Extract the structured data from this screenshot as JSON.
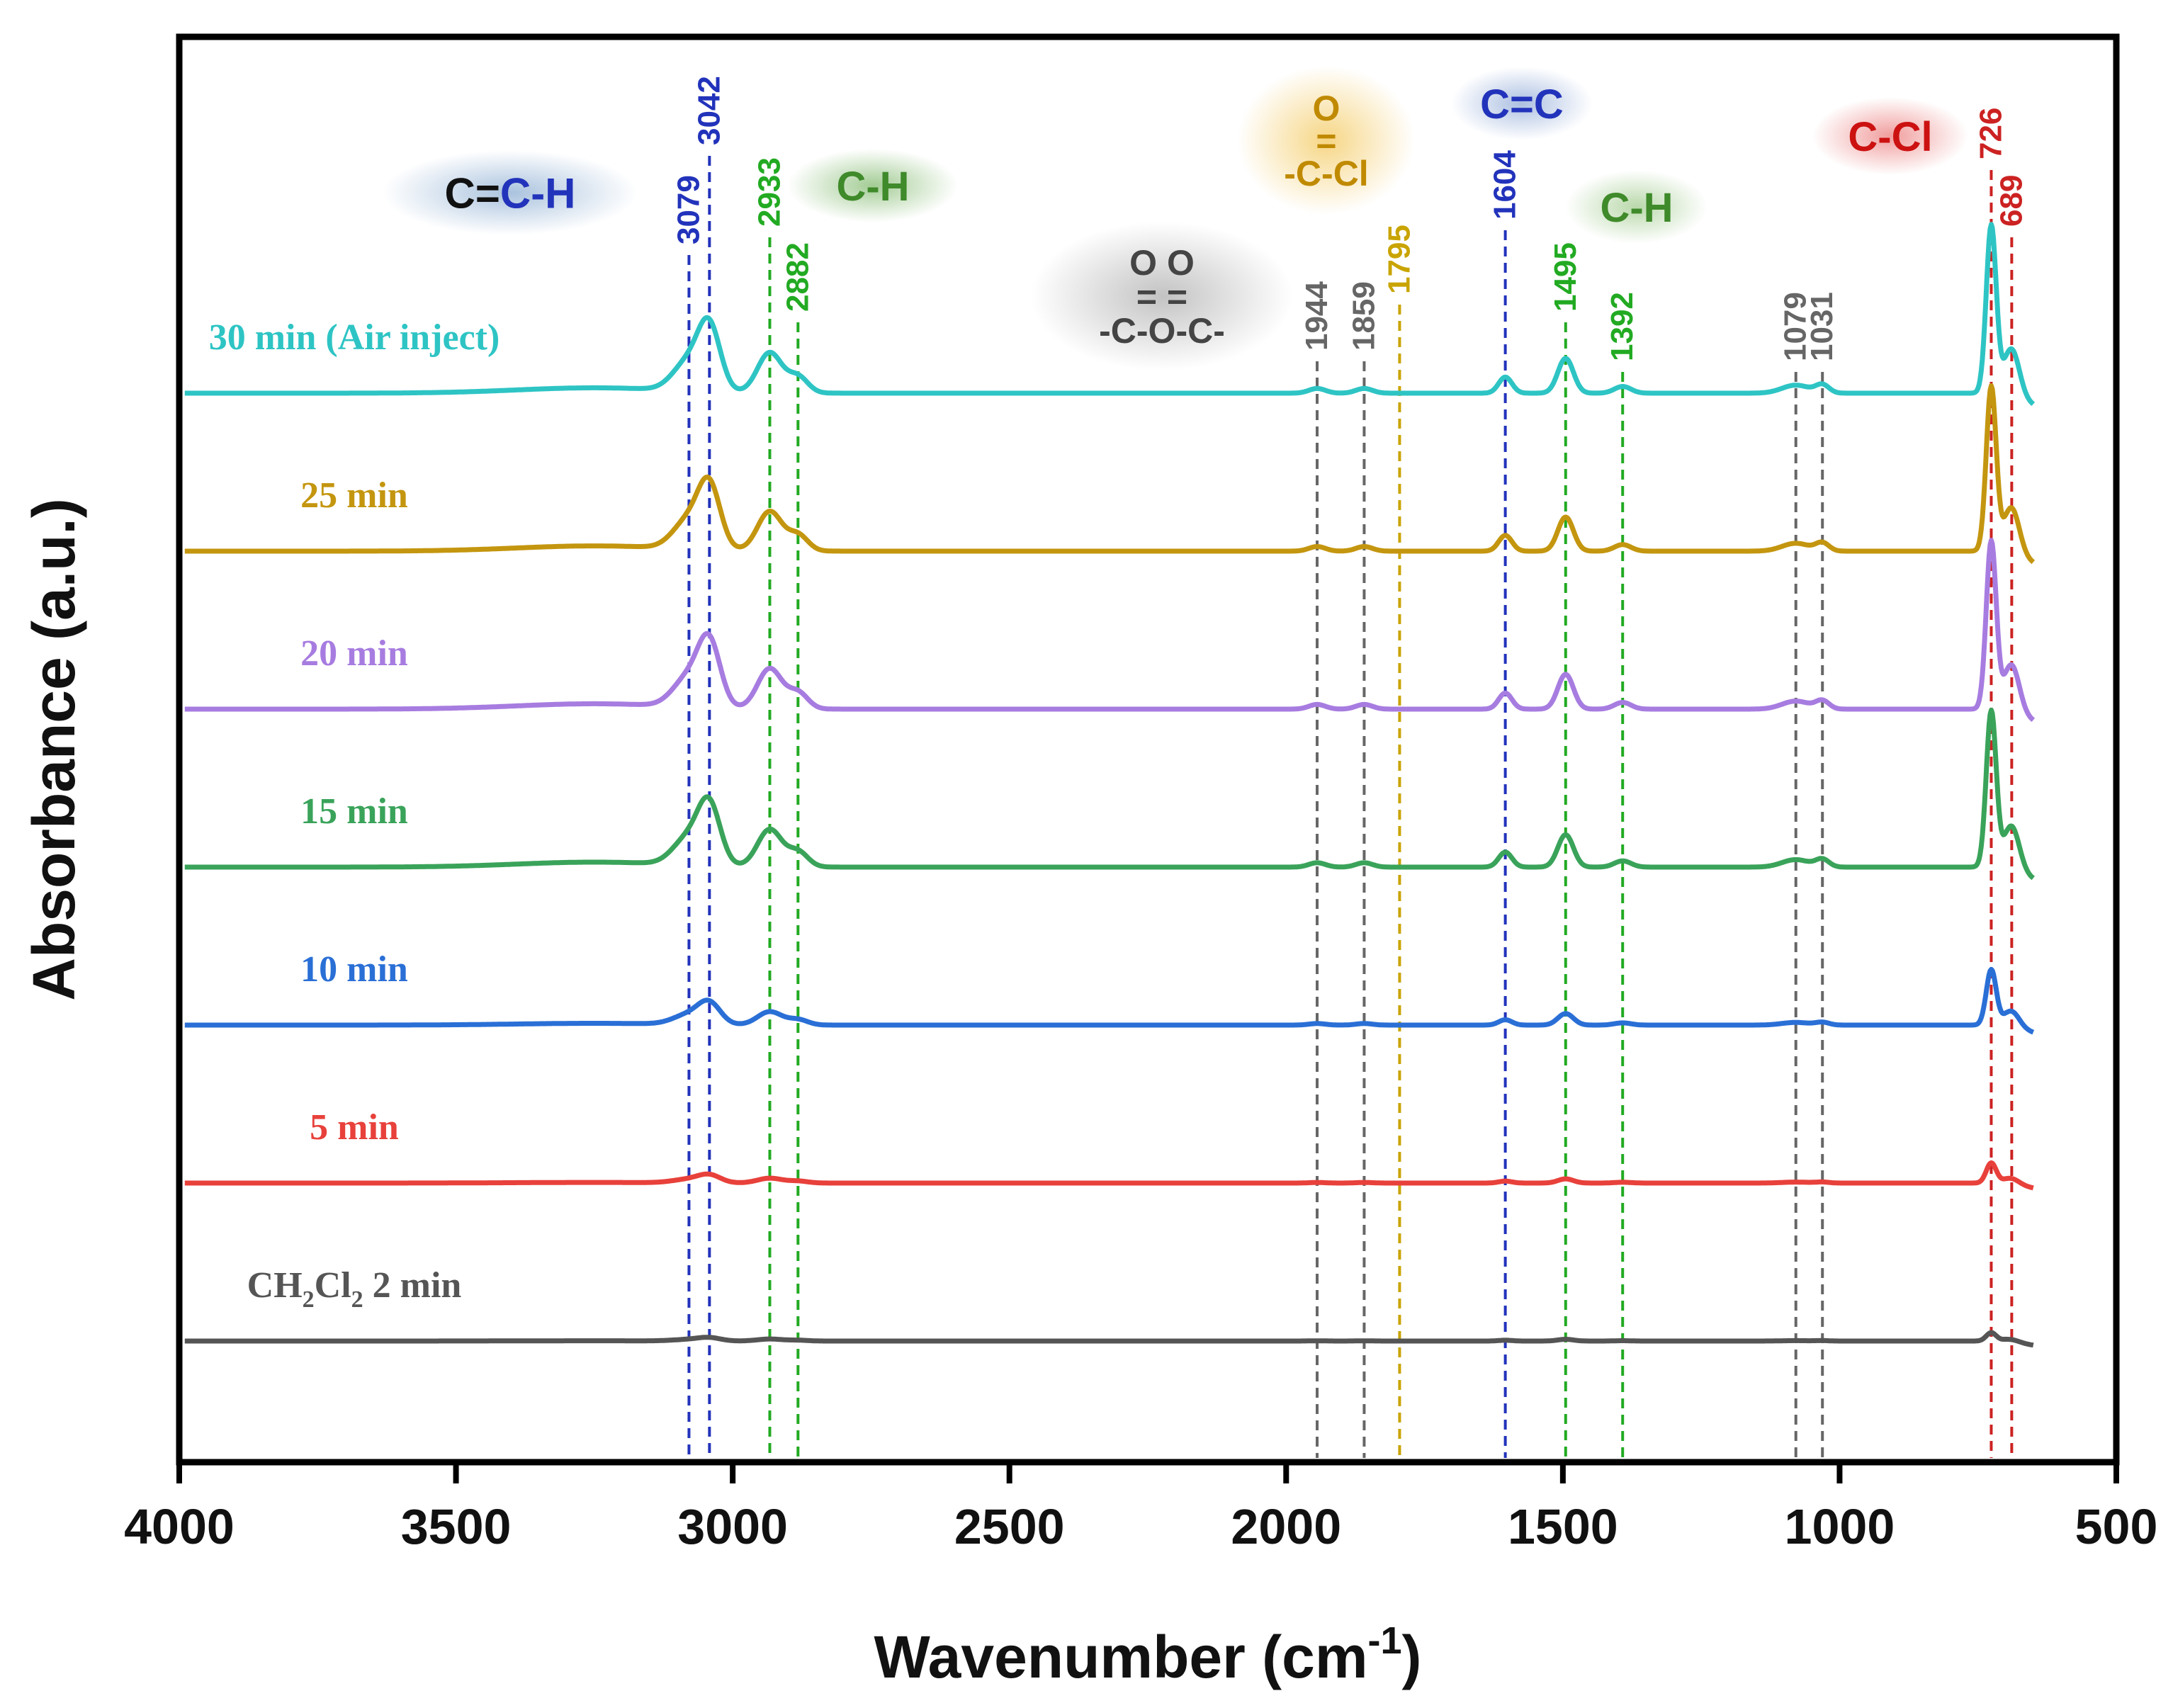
{
  "chart_data": {
    "type": "line",
    "title": "",
    "xlabel": "Wavenumber",
    "xlabel_unit_base": "cm",
    "xlabel_unit_exp": "-1",
    "ylabel": "Absorbance (a.u.)",
    "xlim": [
      4000,
      500
    ],
    "x_ticks": [
      4000,
      3500,
      3000,
      2500,
      2000,
      1500,
      1000,
      500
    ],
    "x_reversed": true,
    "y_ticks_shown": false,
    "offset_step": 1.0,
    "peak_scale": 0.9,
    "series": [
      {
        "name": "CH2Cl2 2 min",
        "label_parts": [
          "CH",
          "2",
          "Cl",
          "2",
          " 2 min"
        ],
        "color": "#555555",
        "offset": 0,
        "intensity": 0.05
      },
      {
        "name": "5 min",
        "color": "#e8413b",
        "offset": 1,
        "intensity": 0.12
      },
      {
        "name": "10 min",
        "color": "#2a6fd6",
        "offset": 2,
        "intensity": 0.33
      },
      {
        "name": "15 min",
        "color": "#3aa35a",
        "offset": 3,
        "intensity": 0.93
      },
      {
        "name": "20 min",
        "color": "#a77ce0",
        "offset": 4,
        "intensity": 1.0
      },
      {
        "name": "25 min",
        "color": "#c4960f",
        "offset": 5,
        "intensity": 0.98
      },
      {
        "name": "30 min (Air inject)",
        "color": "#2ec4c4",
        "offset": 6,
        "intensity": 1.0
      }
    ],
    "peaks": [
      {
        "x": 3079,
        "height": 0.22,
        "width": 28
      },
      {
        "x": 3042,
        "height": 0.45,
        "width": 20
      },
      {
        "x": 2933,
        "height": 0.3,
        "width": 22
      },
      {
        "x": 2882,
        "height": 0.12,
        "width": 18
      },
      {
        "x": 1944,
        "height": 0.035,
        "width": 15
      },
      {
        "x": 1859,
        "height": 0.035,
        "width": 15
      },
      {
        "x": 1604,
        "height": 0.12,
        "width": 12
      },
      {
        "x": 1495,
        "height": 0.26,
        "width": 14
      },
      {
        "x": 1392,
        "height": 0.05,
        "width": 15
      },
      {
        "x": 1079,
        "height": 0.06,
        "width": 25
      },
      {
        "x": 1031,
        "height": 0.06,
        "width": 12
      },
      {
        "x": 726,
        "height": 1.25,
        "width": 9
      },
      {
        "x": 689,
        "height": 0.35,
        "width": 14
      },
      {
        "x": 3250,
        "height": 0.04,
        "width": 140
      }
    ],
    "reference_lines": [
      {
        "x": 3079,
        "label": "3079",
        "color": "#2233bb"
      },
      {
        "x": 3042,
        "label": "3042",
        "color": "#2233bb"
      },
      {
        "x": 2933,
        "label": "2933",
        "color": "#22aa22"
      },
      {
        "x": 2882,
        "label": "2882",
        "color": "#22aa22"
      },
      {
        "x": 1944,
        "label": "1944",
        "color": "#666666"
      },
      {
        "x": 1859,
        "label": "1859",
        "color": "#666666"
      },
      {
        "x": 1795,
        "label": "1795",
        "color": "#c9a400"
      },
      {
        "x": 1604,
        "label": "1604",
        "color": "#2233bb"
      },
      {
        "x": 1495,
        "label": "1495",
        "color": "#22aa22"
      },
      {
        "x": 1392,
        "label": "1392",
        "color": "#22aa22"
      },
      {
        "x": 1079,
        "label": "1079",
        "color": "#666666"
      },
      {
        "x": 1031,
        "label": "1031",
        "color": "#666666"
      },
      {
        "x": 726,
        "label": "726",
        "color": "#cc2222"
      },
      {
        "x": 689,
        "label": "689",
        "color": "#cc2222"
      }
    ],
    "annotations": [
      {
        "id": "cch",
        "glow": "#9bb8d8",
        "lines": [
          [
            {
              "t": "C=",
              "c": "#111111"
            },
            {
              "t": "C-H",
              "c": "#2233bb"
            }
          ]
        ]
      },
      {
        "id": "ch1",
        "glow": "#8cbf7a",
        "lines": [
          [
            {
              "t": "C-H",
              "c": "#3f8a2a"
            }
          ]
        ]
      },
      {
        "id": "anhydride",
        "glow": "#b8b8b8",
        "lines": [
          [
            {
              "t": "O       O",
              "c": "#444444"
            }
          ],
          [
            {
              "t": "=       =",
              "c": "#444444"
            }
          ],
          [
            {
              "t": "-C-O-C-",
              "c": "#444444"
            }
          ]
        ]
      },
      {
        "id": "acyl",
        "glow": "#f5cf70",
        "lines": [
          [
            {
              "t": "O",
              "c": "#c08a00"
            }
          ],
          [
            {
              "t": "=",
              "c": "#c08a00"
            }
          ],
          [
            {
              "t": "-C-Cl",
              "c": "#c08a00"
            }
          ]
        ]
      },
      {
        "id": "cc",
        "glow": "#9db4dc",
        "lines": [
          [
            {
              "t": "C=C",
              "c": "#2233bb"
            }
          ]
        ]
      },
      {
        "id": "ch2",
        "glow": "#a8cf96",
        "lines": [
          [
            {
              "t": "C-H",
              "c": "#3f8a2a"
            }
          ]
        ]
      },
      {
        "id": "ccl",
        "glow": "#ee8c8c",
        "lines": [
          [
            {
              "t": "C-Cl",
              "c": "#cc1111"
            }
          ]
        ]
      }
    ]
  }
}
